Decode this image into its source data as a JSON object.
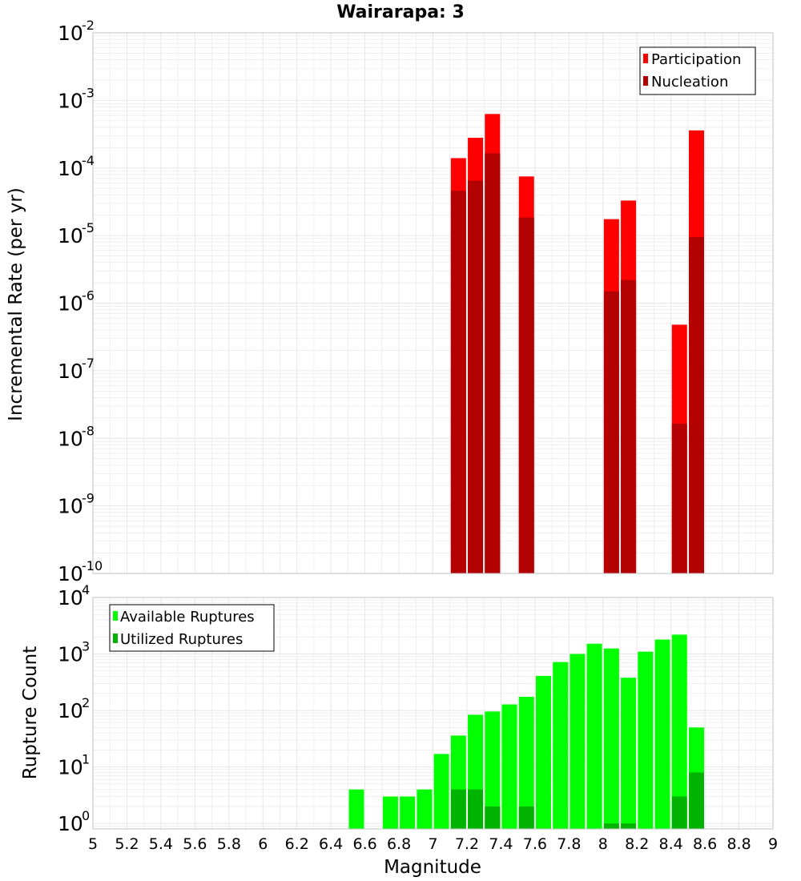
{
  "title": "Wairarapa: 3",
  "colors": {
    "participation": "#ff0000",
    "nucleation": "#b30000",
    "available": "#00ff00",
    "utilized": "#00b300",
    "grid": "#e6e6e6",
    "frame": "#c0c0c0"
  },
  "chart_data": [
    {
      "type": "bar",
      "title": "Wairarapa: 3",
      "xlabel": "Magnitude",
      "ylabel": "Incremental Rate (per yr)",
      "yscale": "log",
      "ylim": [
        1e-10,
        0.01
      ],
      "xlim": [
        5,
        9
      ],
      "grid": true,
      "legend": "top-right",
      "y_ticks": [
        {
          "base": "10",
          "exp": "-10",
          "value": 1e-10
        },
        {
          "base": "10",
          "exp": "-9",
          "value": 1e-09
        },
        {
          "base": "10",
          "exp": "-8",
          "value": 1e-08
        },
        {
          "base": "10",
          "exp": "-7",
          "value": 1e-07
        },
        {
          "base": "10",
          "exp": "-6",
          "value": 1e-06
        },
        {
          "base": "10",
          "exp": "-5",
          "value": 1e-05
        },
        {
          "base": "10",
          "exp": "-4",
          "value": 0.0001
        },
        {
          "base": "10",
          "exp": "-3",
          "value": 0.001
        },
        {
          "base": "10",
          "exp": "-2",
          "value": 0.01
        }
      ],
      "x": [
        7.15,
        7.25,
        7.35,
        7.55,
        8.05,
        8.15,
        8.45,
        8.55
      ],
      "series": [
        {
          "name": "Participation",
          "values": [
            0.00014,
            0.00028,
            0.00063,
            7.5e-05,
            1.75e-05,
            3.3e-05,
            4.8e-07,
            0.00036
          ]
        },
        {
          "name": "Nucleation",
          "values": [
            4.6e-05,
            6.5e-05,
            0.000165,
            1.85e-05,
            1.5e-06,
            2.2e-06,
            1.65e-08,
            9.5e-06
          ]
        }
      ]
    },
    {
      "type": "bar",
      "xlabel": "Magnitude",
      "ylabel": "Rupture Count",
      "yscale": "log",
      "ylim": [
        0.8,
        10000
      ],
      "xlim": [
        5,
        9
      ],
      "grid": true,
      "legend": "top-left",
      "y_ticks": [
        {
          "base": "10",
          "exp": "0",
          "value": 1
        },
        {
          "base": "10",
          "exp": "1",
          "value": 10
        },
        {
          "base": "10",
          "exp": "2",
          "value": 100
        },
        {
          "base": "10",
          "exp": "3",
          "value": 1000
        },
        {
          "base": "10",
          "exp": "4",
          "value": 10000
        }
      ],
      "x_ticks": [
        "5",
        "5.2",
        "5.4",
        "5.6",
        "5.8",
        "6",
        "6.2",
        "6.4",
        "6.6",
        "6.8",
        "7",
        "7.2",
        "7.4",
        "7.6",
        "7.8",
        "8",
        "8.2",
        "8.4",
        "8.6",
        "8.8",
        "9"
      ],
      "x": [
        6.55,
        6.75,
        6.85,
        6.95,
        7.05,
        7.15,
        7.25,
        7.35,
        7.45,
        7.55,
        7.65,
        7.75,
        7.85,
        7.95,
        8.05,
        8.15,
        8.25,
        8.35,
        8.45,
        8.55
      ],
      "series": [
        {
          "name": "Available Ruptures",
          "values": [
            4,
            3,
            3,
            4,
            17,
            36,
            84,
            96,
            128,
            175,
            410,
            720,
            1000,
            1520,
            1250,
            380,
            1100,
            1800,
            2200,
            50
          ]
        },
        {
          "name": "Utilized Ruptures",
          "values": [
            0,
            0,
            0,
            0,
            0,
            4,
            4,
            2,
            0,
            2,
            0,
            0,
            0,
            0,
            1,
            1,
            0,
            0,
            3,
            8
          ]
        }
      ]
    }
  ]
}
